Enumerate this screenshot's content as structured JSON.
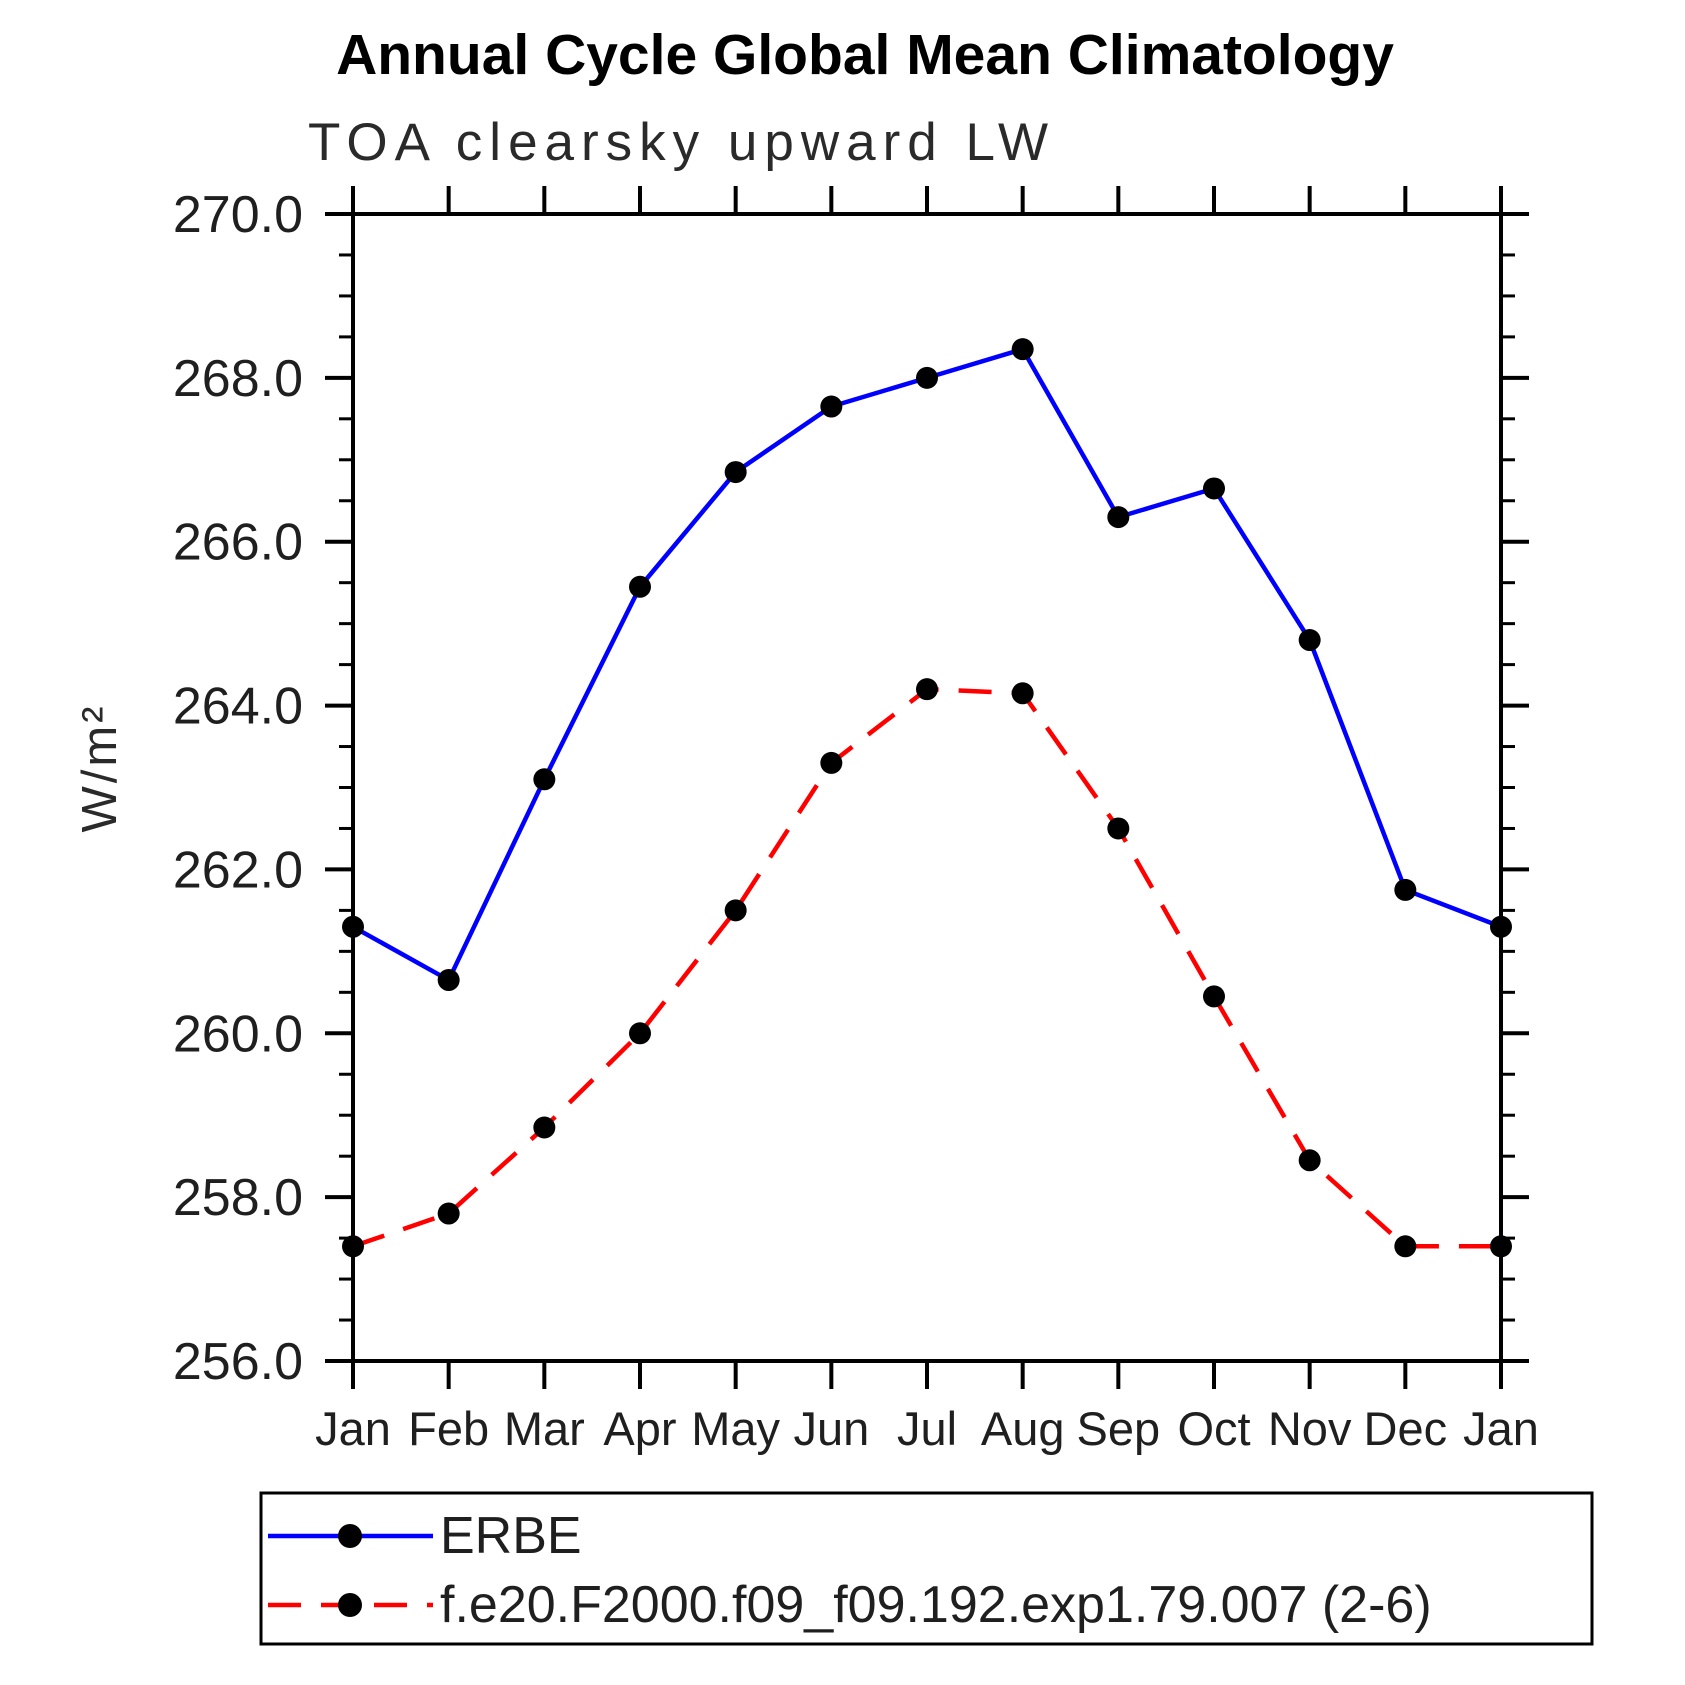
{
  "title": "Annual Cycle Global Mean Climatology",
  "subtitle": "TOA clearsky upward LW",
  "chart_data": {
    "type": "line",
    "x_categories": [
      "Jan",
      "Feb",
      "Mar",
      "Apr",
      "May",
      "Jun",
      "Jul",
      "Aug",
      "Sep",
      "Oct",
      "Nov",
      "Dec",
      "Jan"
    ],
    "ylabel": "W/m²",
    "ylim": [
      256.0,
      270.0
    ],
    "ytick_step": 2.0,
    "yminor_step": 0.5,
    "yticks": [
      "270.0",
      "268.0",
      "266.0",
      "264.0",
      "262.0",
      "260.0",
      "258.0",
      "256.0"
    ],
    "grid": false,
    "legend_position": "bottom-left",
    "axis_color": "#000000",
    "series": [
      {
        "name": "ERBE",
        "line_color": "#0000ff",
        "line_style": "solid",
        "marker": "filled-circle",
        "marker_color": "#000000",
        "values": [
          261.3,
          260.65,
          263.1,
          265.45,
          266.85,
          267.65,
          268.0,
          268.35,
          266.3,
          266.65,
          264.8,
          261.75,
          261.3
        ]
      },
      {
        "name": "f.e20.F2000.f09_f09.192.exp1.79.007 (2-6)",
        "line_color": "#ff0000",
        "line_style": "dashed",
        "marker": "filled-circle",
        "marker_color": "#000000",
        "values": [
          257.4,
          257.8,
          258.85,
          260.0,
          261.5,
          263.3,
          264.2,
          264.15,
          262.5,
          260.45,
          258.45,
          257.4,
          257.4
        ]
      }
    ]
  }
}
